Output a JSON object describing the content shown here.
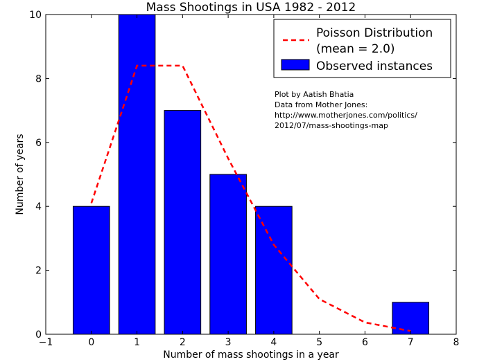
{
  "chart_data": {
    "type": "bar",
    "title": "Mass Shootings in USA 1982 - 2012",
    "xlabel": "Number of mass shootings in a year",
    "ylabel": "Number of years",
    "xlim": [
      -1,
      8
    ],
    "ylim": [
      0,
      10
    ],
    "xticks": [
      -1,
      0,
      1,
      2,
      3,
      4,
      5,
      6,
      7,
      8
    ],
    "xtick_labels": [
      "−1",
      "0",
      "1",
      "2",
      "3",
      "4",
      "5",
      "6",
      "7",
      "8"
    ],
    "yticks": [
      0,
      2,
      4,
      6,
      8,
      10
    ],
    "ytick_labels": [
      "0",
      "2",
      "4",
      "6",
      "8",
      "10"
    ],
    "bar_width": 0.8,
    "series": [
      {
        "name": "Observed instances",
        "type": "bar",
        "color": "#0000ff",
        "x": [
          0,
          1,
          2,
          3,
          4,
          5,
          6,
          7
        ],
        "values": [
          4,
          10,
          7,
          5,
          4,
          0,
          0,
          1
        ]
      },
      {
        "name": "Poisson Distribution (mean = 2.0)",
        "type": "line",
        "style": "dashed",
        "color": "#ff0000",
        "x": [
          0,
          1,
          2,
          3,
          4,
          5,
          6,
          7
        ],
        "values": [
          4.1,
          8.4,
          8.4,
          5.5,
          2.8,
          1.1,
          0.37,
          0.1
        ]
      }
    ],
    "legend": {
      "position": "top-right",
      "entries": [
        {
          "lines": [
            "Poisson Distribution",
            "(mean = 2.0)"
          ],
          "marker": "dashed-line",
          "color": "#ff0000"
        },
        {
          "lines": [
            "Observed instances"
          ],
          "marker": "patch",
          "color": "#0000ff"
        }
      ]
    },
    "annotation": {
      "lines": [
        "Plot by Aatish Bhatia",
        "Data from Mother Jones:",
        "http://www.motherjones.com/politics/",
        "2012/07/mass-shootings-map"
      ]
    }
  }
}
